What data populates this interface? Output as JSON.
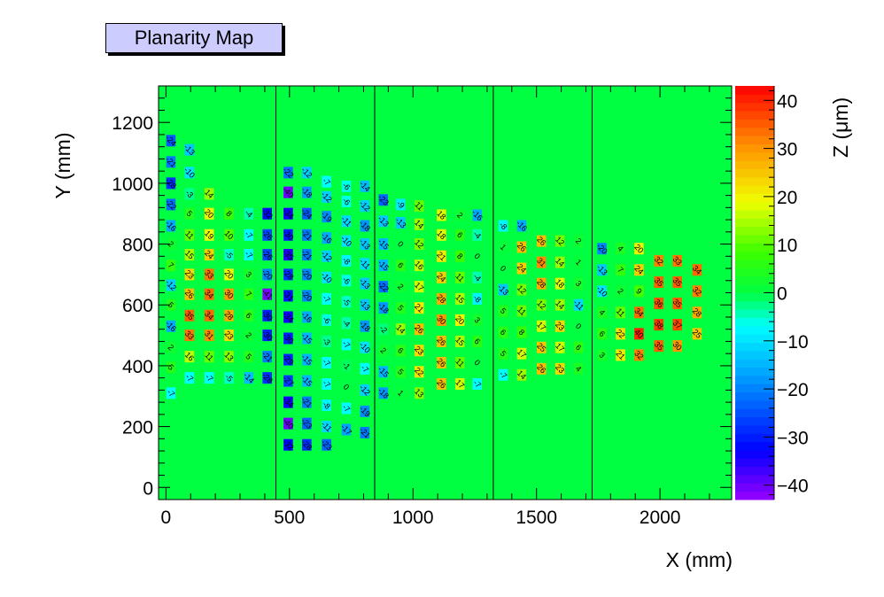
{
  "chart_data": {
    "type": "heatmap",
    "title": "Planarity Map",
    "xlabel": "X (mm)",
    "ylabel": "Y (mm)",
    "zlabel": "Z (μm)",
    "xlim": [
      -30,
      2290
    ],
    "ylim": [
      -40,
      1320
    ],
    "zlim": [
      -43,
      43
    ],
    "xticks": [
      0,
      500,
      1000,
      1500,
      2000
    ],
    "yticks": [
      0,
      200,
      400,
      600,
      800,
      1000,
      1200
    ],
    "zticks": [
      40,
      30,
      20,
      10,
      0,
      -10,
      -20,
      -30,
      -40
    ],
    "background_value": 0,
    "panel_boundaries_x": [
      445,
      845,
      1325,
      1725
    ],
    "cell_size_mm": [
      38,
      38
    ],
    "points": [
      {
        "x": 20,
        "y": 1140,
        "z": -24
      },
      {
        "x": 95,
        "y": 1110,
        "z": -13
      },
      {
        "x": 20,
        "y": 1070,
        "z": -21
      },
      {
        "x": 95,
        "y": 1035,
        "z": -10
      },
      {
        "x": 20,
        "y": 1000,
        "z": -28
      },
      {
        "x": 95,
        "y": 965,
        "z": -3
      },
      {
        "x": 175,
        "y": 965,
        "z": 14
      },
      {
        "x": 20,
        "y": 930,
        "z": -22
      },
      {
        "x": 95,
        "y": 900,
        "z": 5
      },
      {
        "x": 175,
        "y": 900,
        "z": 20
      },
      {
        "x": 255,
        "y": 900,
        "z": 8
      },
      {
        "x": 335,
        "y": 900,
        "z": -4
      },
      {
        "x": 410,
        "y": 900,
        "z": -32
      },
      {
        "x": 20,
        "y": 860,
        "z": -16
      },
      {
        "x": 95,
        "y": 830,
        "z": 11
      },
      {
        "x": 175,
        "y": 830,
        "z": 19
      },
      {
        "x": 255,
        "y": 830,
        "z": 10
      },
      {
        "x": 335,
        "y": 830,
        "z": -7
      },
      {
        "x": 410,
        "y": 830,
        "z": -26
      },
      {
        "x": 20,
        "y": 800,
        "z": 2
      },
      {
        "x": 95,
        "y": 765,
        "z": 15
      },
      {
        "x": 175,
        "y": 765,
        "z": 24
      },
      {
        "x": 255,
        "y": 765,
        "z": -5
      },
      {
        "x": 335,
        "y": 765,
        "z": -7
      },
      {
        "x": 410,
        "y": 765,
        "z": -26
      },
      {
        "x": 20,
        "y": 730,
        "z": 7
      },
      {
        "x": 95,
        "y": 700,
        "z": 23
      },
      {
        "x": 175,
        "y": 700,
        "z": 33
      },
      {
        "x": 255,
        "y": 700,
        "z": 20
      },
      {
        "x": 335,
        "y": 700,
        "z": 3
      },
      {
        "x": 410,
        "y": 700,
        "z": -20
      },
      {
        "x": 20,
        "y": 665,
        "z": -12
      },
      {
        "x": 95,
        "y": 635,
        "z": 26
      },
      {
        "x": 175,
        "y": 635,
        "z": 34
      },
      {
        "x": 255,
        "y": 635,
        "z": 30
      },
      {
        "x": 335,
        "y": 635,
        "z": 7
      },
      {
        "x": 410,
        "y": 635,
        "z": -41
      },
      {
        "x": 20,
        "y": 600,
        "z": 5
      },
      {
        "x": 95,
        "y": 565,
        "z": 35
      },
      {
        "x": 175,
        "y": 565,
        "z": 34
      },
      {
        "x": 255,
        "y": 565,
        "z": 28
      },
      {
        "x": 335,
        "y": 565,
        "z": 6
      },
      {
        "x": 410,
        "y": 565,
        "z": -30
      },
      {
        "x": 20,
        "y": 530,
        "z": -16
      },
      {
        "x": 95,
        "y": 500,
        "z": 33
      },
      {
        "x": 175,
        "y": 500,
        "z": 31
      },
      {
        "x": 255,
        "y": 500,
        "z": 23
      },
      {
        "x": 335,
        "y": 500,
        "z": 2
      },
      {
        "x": 410,
        "y": 500,
        "z": -30
      },
      {
        "x": 20,
        "y": 460,
        "z": 2
      },
      {
        "x": 95,
        "y": 430,
        "z": 16
      },
      {
        "x": 175,
        "y": 430,
        "z": 11
      },
      {
        "x": 255,
        "y": 430,
        "z": 13
      },
      {
        "x": 335,
        "y": 430,
        "z": 5
      },
      {
        "x": 410,
        "y": 430,
        "z": -21
      },
      {
        "x": 20,
        "y": 395,
        "z": 5
      },
      {
        "x": 95,
        "y": 360,
        "z": -7
      },
      {
        "x": 175,
        "y": 360,
        "z": -7
      },
      {
        "x": 255,
        "y": 360,
        "z": -5
      },
      {
        "x": 335,
        "y": 360,
        "z": -14
      },
      {
        "x": 410,
        "y": 360,
        "z": -28
      },
      {
        "x": 20,
        "y": 310,
        "z": -7
      },
      {
        "x": 495,
        "y": 1035,
        "z": -22
      },
      {
        "x": 570,
        "y": 1035,
        "z": -12
      },
      {
        "x": 650,
        "y": 1005,
        "z": -7
      },
      {
        "x": 730,
        "y": 990,
        "z": -6
      },
      {
        "x": 805,
        "y": 990,
        "z": -14
      },
      {
        "x": 495,
        "y": 970,
        "z": -40
      },
      {
        "x": 570,
        "y": 970,
        "z": -18
      },
      {
        "x": 650,
        "y": 955,
        "z": -12
      },
      {
        "x": 730,
        "y": 940,
        "z": -6
      },
      {
        "x": 805,
        "y": 925,
        "z": -12
      },
      {
        "x": 495,
        "y": 900,
        "z": -34
      },
      {
        "x": 570,
        "y": 900,
        "z": -24
      },
      {
        "x": 650,
        "y": 890,
        "z": -19
      },
      {
        "x": 730,
        "y": 875,
        "z": -11
      },
      {
        "x": 805,
        "y": 860,
        "z": -18
      },
      {
        "x": 495,
        "y": 830,
        "z": -30
      },
      {
        "x": 570,
        "y": 830,
        "z": -21
      },
      {
        "x": 650,
        "y": 820,
        "z": -16
      },
      {
        "x": 730,
        "y": 810,
        "z": -10
      },
      {
        "x": 805,
        "y": 800,
        "z": -13
      },
      {
        "x": 495,
        "y": 765,
        "z": -35
      },
      {
        "x": 570,
        "y": 765,
        "z": -21
      },
      {
        "x": 650,
        "y": 760,
        "z": -12
      },
      {
        "x": 730,
        "y": 745,
        "z": -8
      },
      {
        "x": 805,
        "y": 735,
        "z": -11
      },
      {
        "x": 495,
        "y": 700,
        "z": -28
      },
      {
        "x": 570,
        "y": 700,
        "z": -20
      },
      {
        "x": 650,
        "y": 690,
        "z": -10
      },
      {
        "x": 730,
        "y": 680,
        "z": -6
      },
      {
        "x": 805,
        "y": 670,
        "z": -13
      },
      {
        "x": 495,
        "y": 630,
        "z": -31
      },
      {
        "x": 570,
        "y": 630,
        "z": -20
      },
      {
        "x": 650,
        "y": 620,
        "z": -7
      },
      {
        "x": 730,
        "y": 610,
        "z": -5
      },
      {
        "x": 805,
        "y": 600,
        "z": -13
      },
      {
        "x": 495,
        "y": 560,
        "z": -34
      },
      {
        "x": 570,
        "y": 560,
        "z": -16
      },
      {
        "x": 650,
        "y": 550,
        "z": -6
      },
      {
        "x": 730,
        "y": 540,
        "z": -4
      },
      {
        "x": 805,
        "y": 530,
        "z": -18
      },
      {
        "x": 495,
        "y": 490,
        "z": -30
      },
      {
        "x": 570,
        "y": 490,
        "z": -15
      },
      {
        "x": 650,
        "y": 480,
        "z": -3
      },
      {
        "x": 730,
        "y": 470,
        "z": -7
      },
      {
        "x": 805,
        "y": 460,
        "z": -10
      },
      {
        "x": 495,
        "y": 420,
        "z": -29
      },
      {
        "x": 570,
        "y": 420,
        "z": -15
      },
      {
        "x": 650,
        "y": 410,
        "z": -7
      },
      {
        "x": 730,
        "y": 400,
        "z": -1
      },
      {
        "x": 805,
        "y": 390,
        "z": -7
      },
      {
        "x": 495,
        "y": 350,
        "z": -27
      },
      {
        "x": 570,
        "y": 350,
        "z": -15
      },
      {
        "x": 650,
        "y": 340,
        "z": -7
      },
      {
        "x": 730,
        "y": 330,
        "z": 0
      },
      {
        "x": 805,
        "y": 320,
        "z": -12
      },
      {
        "x": 495,
        "y": 280,
        "z": -34
      },
      {
        "x": 570,
        "y": 280,
        "z": -21
      },
      {
        "x": 650,
        "y": 270,
        "z": -8
      },
      {
        "x": 730,
        "y": 260,
        "z": -7
      },
      {
        "x": 805,
        "y": 250,
        "z": -19
      },
      {
        "x": 495,
        "y": 210,
        "z": -40
      },
      {
        "x": 570,
        "y": 210,
        "z": -23
      },
      {
        "x": 650,
        "y": 200,
        "z": -11
      },
      {
        "x": 730,
        "y": 190,
        "z": -17
      },
      {
        "x": 805,
        "y": 180,
        "z": -21
      },
      {
        "x": 495,
        "y": 140,
        "z": -32
      },
      {
        "x": 570,
        "y": 140,
        "z": -28
      },
      {
        "x": 650,
        "y": 140,
        "z": -23
      },
      {
        "x": 880,
        "y": 945,
        "z": -23
      },
      {
        "x": 950,
        "y": 930,
        "z": -9
      },
      {
        "x": 1025,
        "y": 925,
        "z": 11
      },
      {
        "x": 880,
        "y": 875,
        "z": -13
      },
      {
        "x": 950,
        "y": 870,
        "z": -13
      },
      {
        "x": 1025,
        "y": 865,
        "z": 14
      },
      {
        "x": 1115,
        "y": 895,
        "z": 18
      },
      {
        "x": 1190,
        "y": 895,
        "z": 2
      },
      {
        "x": 1260,
        "y": 895,
        "z": -16
      },
      {
        "x": 880,
        "y": 800,
        "z": -15
      },
      {
        "x": 950,
        "y": 800,
        "z": 0
      },
      {
        "x": 1025,
        "y": 800,
        "z": 12
      },
      {
        "x": 1115,
        "y": 830,
        "z": 18
      },
      {
        "x": 1190,
        "y": 830,
        "z": 6
      },
      {
        "x": 1260,
        "y": 830,
        "z": -4
      },
      {
        "x": 880,
        "y": 730,
        "z": -15
      },
      {
        "x": 950,
        "y": 730,
        "z": 6
      },
      {
        "x": 1025,
        "y": 730,
        "z": 16
      },
      {
        "x": 1115,
        "y": 760,
        "z": 21
      },
      {
        "x": 1190,
        "y": 760,
        "z": 8
      },
      {
        "x": 1260,
        "y": 760,
        "z": 0
      },
      {
        "x": 880,
        "y": 660,
        "z": -22
      },
      {
        "x": 950,
        "y": 660,
        "z": 2
      },
      {
        "x": 1025,
        "y": 660,
        "z": 17
      },
      {
        "x": 1115,
        "y": 690,
        "z": 24
      },
      {
        "x": 1190,
        "y": 690,
        "z": 11
      },
      {
        "x": 1260,
        "y": 690,
        "z": -4
      },
      {
        "x": 880,
        "y": 590,
        "z": -18
      },
      {
        "x": 950,
        "y": 590,
        "z": 5
      },
      {
        "x": 1025,
        "y": 590,
        "z": 21
      },
      {
        "x": 1115,
        "y": 620,
        "z": 28
      },
      {
        "x": 1190,
        "y": 620,
        "z": 15
      },
      {
        "x": 1260,
        "y": 620,
        "z": -8
      },
      {
        "x": 880,
        "y": 520,
        "z": -2
      },
      {
        "x": 950,
        "y": 520,
        "z": 14
      },
      {
        "x": 1025,
        "y": 520,
        "z": 26
      },
      {
        "x": 1115,
        "y": 550,
        "z": 30
      },
      {
        "x": 1190,
        "y": 550,
        "z": 20
      },
      {
        "x": 1260,
        "y": 550,
        "z": 3
      },
      {
        "x": 880,
        "y": 450,
        "z": 2
      },
      {
        "x": 950,
        "y": 450,
        "z": 6
      },
      {
        "x": 1025,
        "y": 450,
        "z": 23
      },
      {
        "x": 1115,
        "y": 480,
        "z": 26
      },
      {
        "x": 1190,
        "y": 480,
        "z": 15
      },
      {
        "x": 1260,
        "y": 480,
        "z": 6
      },
      {
        "x": 880,
        "y": 380,
        "z": -15
      },
      {
        "x": 950,
        "y": 380,
        "z": 5
      },
      {
        "x": 1025,
        "y": 380,
        "z": 22
      },
      {
        "x": 1115,
        "y": 410,
        "z": 26
      },
      {
        "x": 1190,
        "y": 410,
        "z": 11
      },
      {
        "x": 1260,
        "y": 410,
        "z": 0
      },
      {
        "x": 880,
        "y": 310,
        "z": -18
      },
      {
        "x": 950,
        "y": 310,
        "z": 1
      },
      {
        "x": 1025,
        "y": 310,
        "z": 13
      },
      {
        "x": 1115,
        "y": 340,
        "z": 26
      },
      {
        "x": 1190,
        "y": 340,
        "z": 17
      },
      {
        "x": 1260,
        "y": 340,
        "z": -7
      },
      {
        "x": 1365,
        "y": 860,
        "z": -8
      },
      {
        "x": 1440,
        "y": 860,
        "z": -16
      },
      {
        "x": 1365,
        "y": 790,
        "z": 1
      },
      {
        "x": 1440,
        "y": 790,
        "z": 26
      },
      {
        "x": 1520,
        "y": 810,
        "z": 26
      },
      {
        "x": 1595,
        "y": 810,
        "z": 12
      },
      {
        "x": 1670,
        "y": 810,
        "z": 2
      },
      {
        "x": 1365,
        "y": 720,
        "z": 0
      },
      {
        "x": 1440,
        "y": 720,
        "z": 24
      },
      {
        "x": 1520,
        "y": 740,
        "z": 31
      },
      {
        "x": 1595,
        "y": 740,
        "z": 14
      },
      {
        "x": 1670,
        "y": 740,
        "z": 1
      },
      {
        "x": 1365,
        "y": 650,
        "z": -13
      },
      {
        "x": 1440,
        "y": 650,
        "z": 12
      },
      {
        "x": 1520,
        "y": 670,
        "z": 28
      },
      {
        "x": 1595,
        "y": 670,
        "z": 18
      },
      {
        "x": 1670,
        "y": 670,
        "z": 3
      },
      {
        "x": 1365,
        "y": 580,
        "z": 5
      },
      {
        "x": 1440,
        "y": 580,
        "z": 11
      },
      {
        "x": 1520,
        "y": 600,
        "z": 12
      },
      {
        "x": 1595,
        "y": 600,
        "z": 14
      },
      {
        "x": 1670,
        "y": 600,
        "z": -11
      },
      {
        "x": 1365,
        "y": 510,
        "z": 6
      },
      {
        "x": 1440,
        "y": 510,
        "z": 8
      },
      {
        "x": 1520,
        "y": 530,
        "z": 17
      },
      {
        "x": 1595,
        "y": 530,
        "z": 23
      },
      {
        "x": 1670,
        "y": 530,
        "z": 0
      },
      {
        "x": 1365,
        "y": 440,
        "z": 5
      },
      {
        "x": 1440,
        "y": 440,
        "z": 17
      },
      {
        "x": 1520,
        "y": 460,
        "z": 25
      },
      {
        "x": 1595,
        "y": 460,
        "z": 17
      },
      {
        "x": 1670,
        "y": 460,
        "z": 6
      },
      {
        "x": 1365,
        "y": 370,
        "z": -7
      },
      {
        "x": 1440,
        "y": 370,
        "z": 14
      },
      {
        "x": 1520,
        "y": 390,
        "z": 26
      },
      {
        "x": 1595,
        "y": 390,
        "z": 23
      },
      {
        "x": 1670,
        "y": 390,
        "z": 4
      },
      {
        "x": 1765,
        "y": 785,
        "z": -20
      },
      {
        "x": 1840,
        "y": 785,
        "z": 4
      },
      {
        "x": 1915,
        "y": 785,
        "z": 20
      },
      {
        "x": 1765,
        "y": 715,
        "z": -13
      },
      {
        "x": 1840,
        "y": 715,
        "z": 7
      },
      {
        "x": 1915,
        "y": 715,
        "z": 24
      },
      {
        "x": 1995,
        "y": 745,
        "z": 32
      },
      {
        "x": 2070,
        "y": 745,
        "z": 33
      },
      {
        "x": 2150,
        "y": 715,
        "z": 34
      },
      {
        "x": 1765,
        "y": 645,
        "z": -10
      },
      {
        "x": 1840,
        "y": 645,
        "z": 2
      },
      {
        "x": 1915,
        "y": 645,
        "z": 9
      },
      {
        "x": 1995,
        "y": 675,
        "z": 35
      },
      {
        "x": 2070,
        "y": 675,
        "z": 35
      },
      {
        "x": 2150,
        "y": 645,
        "z": 32
      },
      {
        "x": 1765,
        "y": 575,
        "z": 4
      },
      {
        "x": 1840,
        "y": 575,
        "z": 11
      },
      {
        "x": 1915,
        "y": 575,
        "z": 34
      },
      {
        "x": 1995,
        "y": 605,
        "z": 36
      },
      {
        "x": 2070,
        "y": 605,
        "z": 35
      },
      {
        "x": 2150,
        "y": 575,
        "z": 28
      },
      {
        "x": 1765,
        "y": 505,
        "z": 6
      },
      {
        "x": 1840,
        "y": 505,
        "z": 22
      },
      {
        "x": 1915,
        "y": 505,
        "z": 40
      },
      {
        "x": 1995,
        "y": 535,
        "z": 38
      },
      {
        "x": 2070,
        "y": 535,
        "z": 37
      },
      {
        "x": 2150,
        "y": 505,
        "z": 25
      },
      {
        "x": 1765,
        "y": 435,
        "z": 3
      },
      {
        "x": 1840,
        "y": 435,
        "z": 21
      },
      {
        "x": 1915,
        "y": 435,
        "z": 32
      },
      {
        "x": 1995,
        "y": 465,
        "z": 35
      },
      {
        "x": 2070,
        "y": 465,
        "z": 30
      }
    ]
  }
}
